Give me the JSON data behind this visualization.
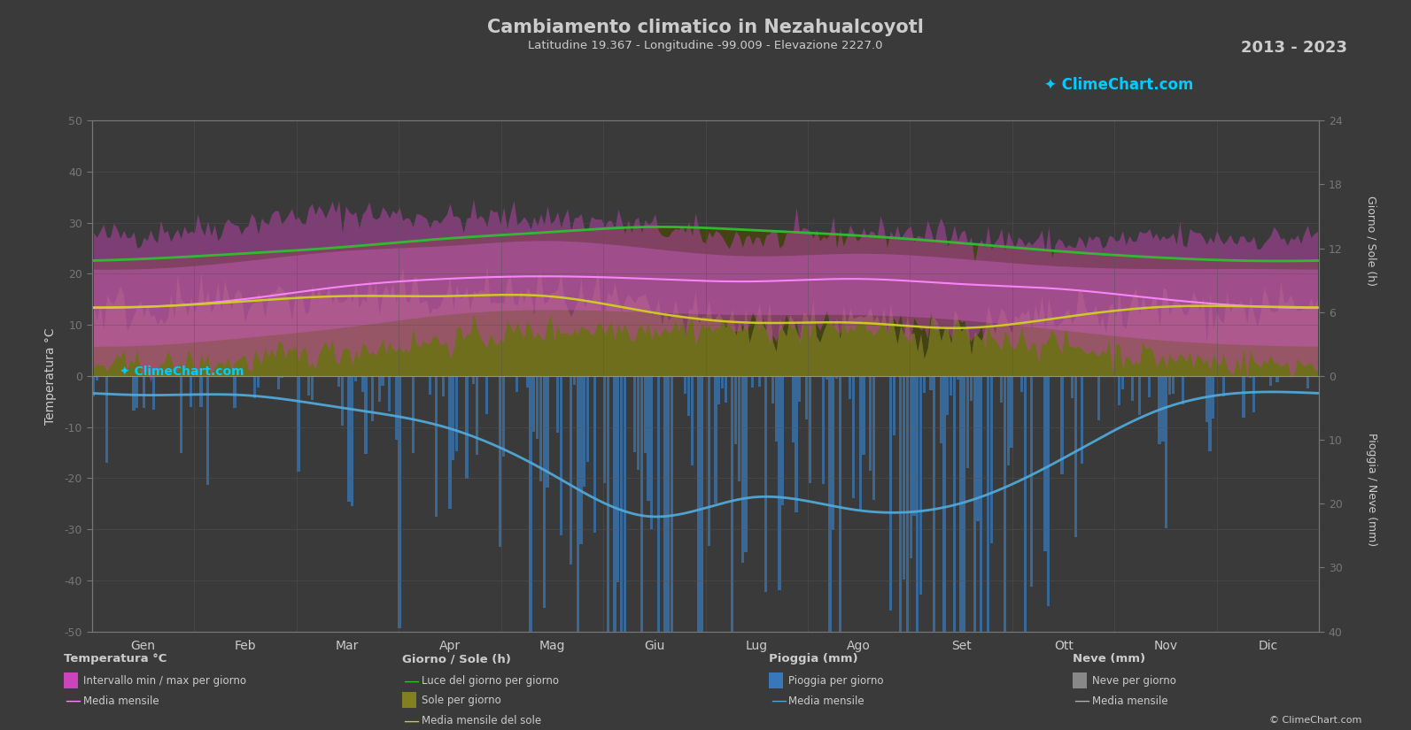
{
  "title": "Cambiamento climatico in Nezahualcoyotl",
  "subtitle": "Latitudine 19.367 - Longitudine -99.009 - Elevazione 2227.0",
  "year_range": "2013 - 2023",
  "months": [
    "Gen",
    "Feb",
    "Mar",
    "Apr",
    "Mag",
    "Giu",
    "Lug",
    "Ago",
    "Set",
    "Ott",
    "Nov",
    "Dic"
  ],
  "bg_color": "#3a3a3a",
  "grid_color": "#555555",
  "temp_ylim": [
    -50,
    50
  ],
  "temp_mean": [
    13.5,
    15.0,
    17.5,
    19.0,
    19.5,
    19.0,
    18.5,
    19.0,
    18.0,
    17.0,
    15.0,
    13.5
  ],
  "temp_max_mean": [
    21.0,
    22.5,
    24.5,
    25.5,
    26.5,
    25.0,
    23.5,
    24.0,
    23.0,
    21.5,
    21.0,
    21.0
  ],
  "temp_min_mean": [
    6.0,
    7.5,
    9.5,
    12.0,
    13.0,
    12.5,
    12.0,
    12.0,
    11.0,
    9.0,
    7.0,
    6.0
  ],
  "temp_max_extreme": [
    28.0,
    30.0,
    32.0,
    31.0,
    31.0,
    29.0,
    27.0,
    28.0,
    27.5,
    26.0,
    27.0,
    27.0
  ],
  "temp_min_extreme": [
    2.0,
    3.0,
    5.0,
    7.0,
    9.0,
    9.5,
    9.5,
    9.5,
    8.5,
    6.0,
    3.5,
    2.5
  ],
  "daylight_mean": [
    11.0,
    11.5,
    12.1,
    12.9,
    13.5,
    14.0,
    13.7,
    13.2,
    12.5,
    11.7,
    11.1,
    10.8
  ],
  "sunshine_mean": [
    6.5,
    7.0,
    7.5,
    7.5,
    7.5,
    6.0,
    5.0,
    5.0,
    4.5,
    5.5,
    6.5,
    6.5
  ],
  "rain_mean_mm": [
    3.0,
    3.0,
    5.0,
    8.0,
    15.0,
    22.0,
    19.0,
    21.0,
    20.0,
    13.0,
    5.0,
    2.5
  ],
  "rain_scale": 1.25,
  "sun_to_temp": 2.083,
  "colors": {
    "temp_outer_fill": "#c050b0",
    "temp_inner_fill": "#d060c0",
    "temp_mean_line": "#ff88ff",
    "sunshine_fill": "#808020",
    "daylight_fill": "#505010",
    "daylight_line": "#30c030",
    "sunshine_line": "#d0d020",
    "rain_bar": "#3878b8",
    "rain_mean_line": "#50a8d8",
    "text_color": "#cccccc",
    "axis_color": "#777777"
  },
  "legend": {
    "temp_section": "Temperatura °C",
    "temp_interval": "Intervallo min / max per giorno",
    "temp_monthly": "Media mensile",
    "sun_section": "Giorno / Sole (h)",
    "daylight_label": "Luce del giorno per giorno",
    "sunshine_label": "Sole per giorno",
    "sunshine_monthly": "Media mensile del sole",
    "rain_section": "Pioggia (mm)",
    "rain_label": "Pioggia per giorno",
    "rain_monthly": "Media mensile",
    "snow_section": "Neve (mm)",
    "snow_label": "Neve per giorno",
    "snow_monthly": "Media mensile"
  }
}
